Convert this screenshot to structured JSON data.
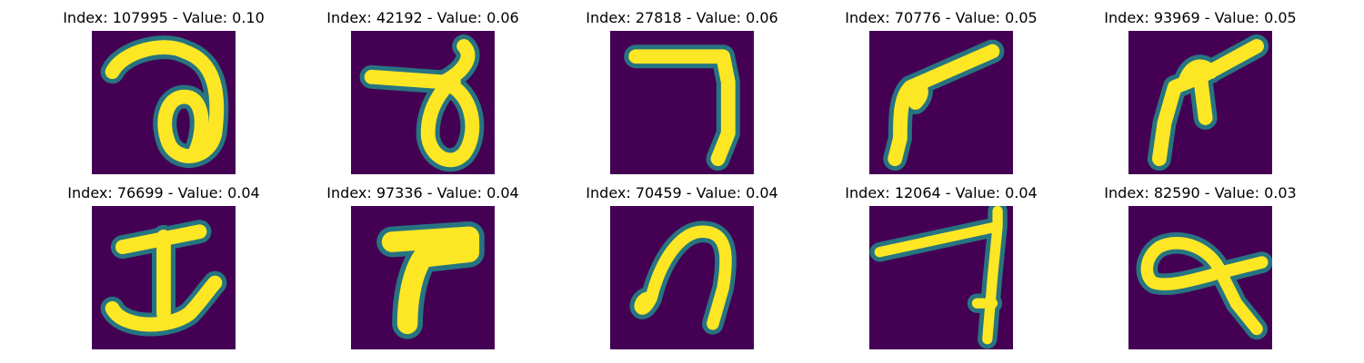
{
  "colors": {
    "background": "#440154",
    "low": "#31688e",
    "mid": "#21918c",
    "high": "#fde725"
  },
  "panels": [
    {
      "title": "Index: 107995 - Value: 0.10",
      "glyph": "curl-2-loop"
    },
    {
      "title": "Index: 42192 - Value: 0.06",
      "glyph": "curl-2-loop-tall"
    },
    {
      "title": "Index: 27818 - Value: 0.06",
      "glyph": "seven-corner"
    },
    {
      "title": "Index: 70776 - Value: 0.05",
      "glyph": "seven-slanted"
    },
    {
      "title": "Index: 93969 - Value: 0.05",
      "glyph": "seven-forked"
    },
    {
      "title": "Index: 76699 - Value: 0.04",
      "glyph": "anchor-stroke"
    },
    {
      "title": "Index: 97336 - Value: 0.04",
      "glyph": "seven-bold"
    },
    {
      "title": "Index: 70459 - Value: 0.04",
      "glyph": "arch-hook"
    },
    {
      "title": "Index: 12064 - Value: 0.04",
      "glyph": "seven-thin"
    },
    {
      "title": "Index: 82590 - Value: 0.03",
      "glyph": "loop-four"
    }
  ]
}
